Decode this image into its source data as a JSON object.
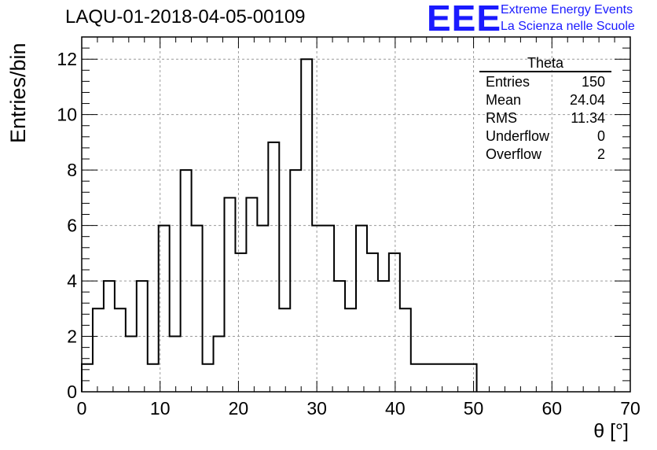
{
  "title": "LAQU-01-2018-04-05-00109",
  "logo": {
    "mark": "EEE",
    "line1": "Extreme Energy Events",
    "line2": "La Scienza nelle Scuole",
    "color": "#1a1aff"
  },
  "stats": {
    "title": "Theta",
    "rows": [
      {
        "label": "Entries",
        "value": "150"
      },
      {
        "label": "Mean",
        "value": "24.04"
      },
      {
        "label": "RMS",
        "value": "11.34"
      },
      {
        "label": "Underflow",
        "value": "0"
      },
      {
        "label": "Overflow",
        "value": "2"
      }
    ]
  },
  "chart_data": {
    "type": "bar",
    "style": "step-histogram",
    "title": "LAQU-01-2018-04-05-00109",
    "xlabel": "θ [°]",
    "ylabel": "Entries/bin",
    "xlim": [
      0,
      70
    ],
    "ylim": [
      0,
      12.8
    ],
    "grid": true,
    "bin_width": 1.4,
    "bin_start": 0,
    "values": [
      1,
      3,
      4,
      3,
      2,
      4,
      1,
      6,
      2,
      8,
      6,
      1,
      2,
      7,
      5,
      7,
      6,
      9,
      3,
      8,
      12,
      6,
      6,
      4,
      3,
      6,
      5,
      4,
      5,
      3,
      1,
      1,
      1,
      1,
      1,
      1,
      0,
      0,
      0,
      0,
      0,
      0,
      0,
      0,
      0,
      0,
      0,
      0,
      0,
      0
    ],
    "x_ticks": [
      0,
      10,
      20,
      30,
      40,
      50,
      60,
      70
    ],
    "y_ticks": [
      0,
      2,
      4,
      6,
      8,
      10,
      12
    ],
    "line_color": "#000000"
  }
}
